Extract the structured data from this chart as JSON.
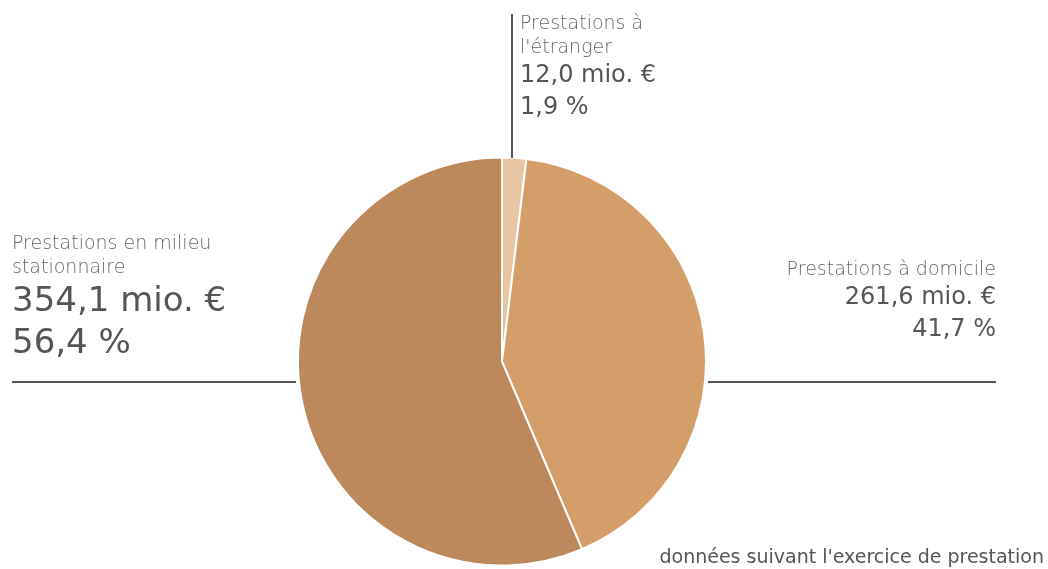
{
  "chart_data": {
    "type": "pie",
    "categories": [
      "Prestations à l'étranger",
      "Prestations à domicile",
      "Prestations en milieu stationnaire"
    ],
    "values": [
      12.0,
      261.6,
      354.1
    ],
    "colors": [
      "#e8c6a4",
      "#d49e6a",
      "#bb895b"
    ],
    "value_labels": [
      "12,0 mio. €\n1,9 %",
      "261,6 mio. €\n41,7 %",
      "354,1 mio. €\n56,4 %"
    ],
    "annotations": [
      "données suivant l'exercice de prestation"
    ],
    "legend": false
  }
}
